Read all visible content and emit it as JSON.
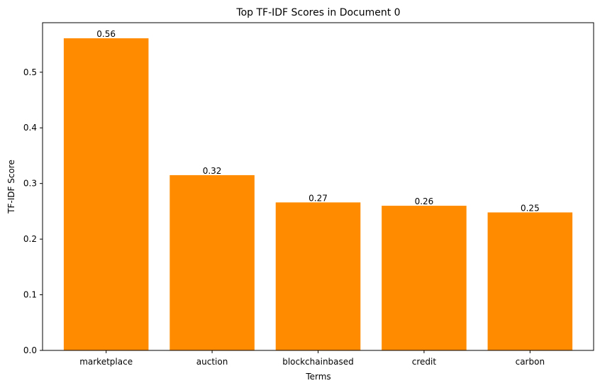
{
  "chart_data": {
    "type": "bar",
    "title": "Top TF-IDF Scores in Document 0",
    "xlabel": "Terms",
    "ylabel": "TF-IDF Score",
    "categories": [
      "marketplace",
      "auction",
      "blockchainbased",
      "credit",
      "carbon"
    ],
    "values": [
      0.561,
      0.315,
      0.266,
      0.26,
      0.248
    ],
    "data_labels": [
      "0.56",
      "0.32",
      "0.27",
      "0.26",
      "0.25"
    ],
    "ylim": [
      0,
      0.589
    ],
    "yticks": [
      0.0,
      0.1,
      0.2,
      0.3,
      0.4,
      0.5
    ],
    "ytick_labels": [
      "0.0",
      "0.1",
      "0.2",
      "0.3",
      "0.4",
      "0.5"
    ],
    "bar_color": "#ff8c00",
    "grid": false,
    "legend": "none"
  }
}
